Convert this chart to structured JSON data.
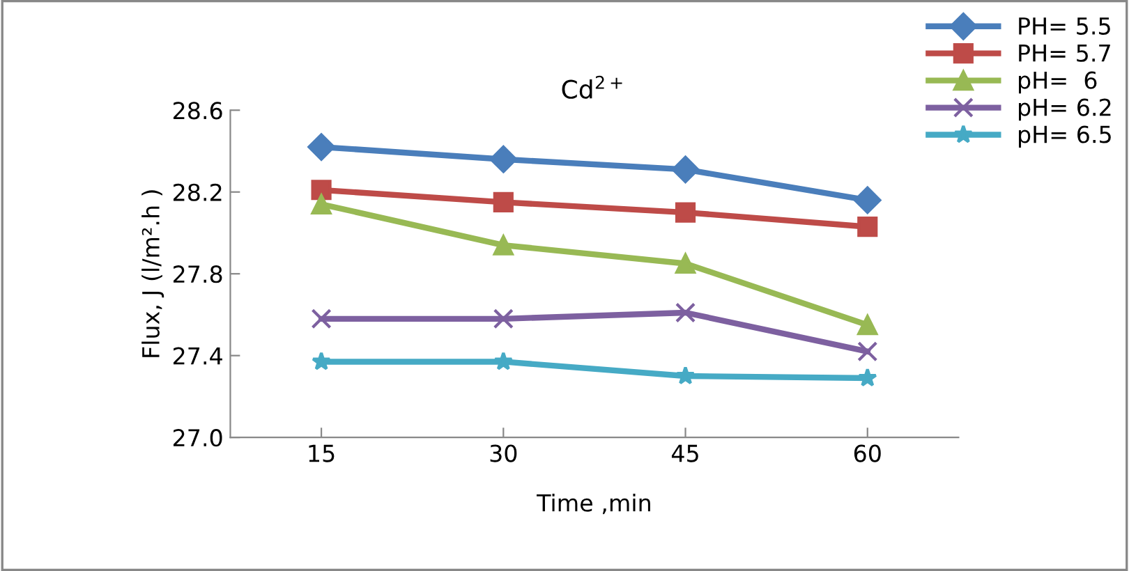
{
  "chart_data": {
    "type": "line",
    "title": "Cd$^{2+}$",
    "xlabel": "Time ,min",
    "ylabel": "Flux, J (l/m².h )",
    "categories": [
      "15",
      "30",
      "45",
      "60"
    ],
    "series": [
      {
        "name": "PH= 5.5",
        "color": "#4a7ebb",
        "marker": "diamond",
        "values": [
          28.42,
          28.36,
          28.31,
          28.16
        ]
      },
      {
        "name": "PH= 5.7",
        "color": "#be4b48",
        "marker": "square",
        "values": [
          28.21,
          28.15,
          28.1,
          28.03
        ]
      },
      {
        "name": "pH=  6",
        "color": "#98b954",
        "marker": "triangle",
        "values": [
          28.14,
          27.94,
          27.85,
          27.55
        ]
      },
      {
        "name": "pH= 6.2",
        "color": "#7d60a0",
        "marker": "cross",
        "values": [
          27.58,
          27.58,
          27.61,
          27.42
        ]
      },
      {
        "name": "pH= 6.5",
        "color": "#46aac5",
        "marker": "star",
        "values": [
          27.37,
          27.37,
          27.3,
          27.29
        ]
      }
    ],
    "ylim": [
      27.0,
      28.6
    ],
    "yticks": [
      {
        "value": 27.0,
        "label": "27.0"
      },
      {
        "value": 27.4,
        "label": "27.4"
      },
      {
        "value": 27.8,
        "label": "27.8"
      },
      {
        "value": 28.2,
        "label": "28.2"
      },
      {
        "value": 28.6,
        "label": "28.6"
      }
    ],
    "grid": false,
    "legend": "top right",
    "line_style": "solid"
  }
}
